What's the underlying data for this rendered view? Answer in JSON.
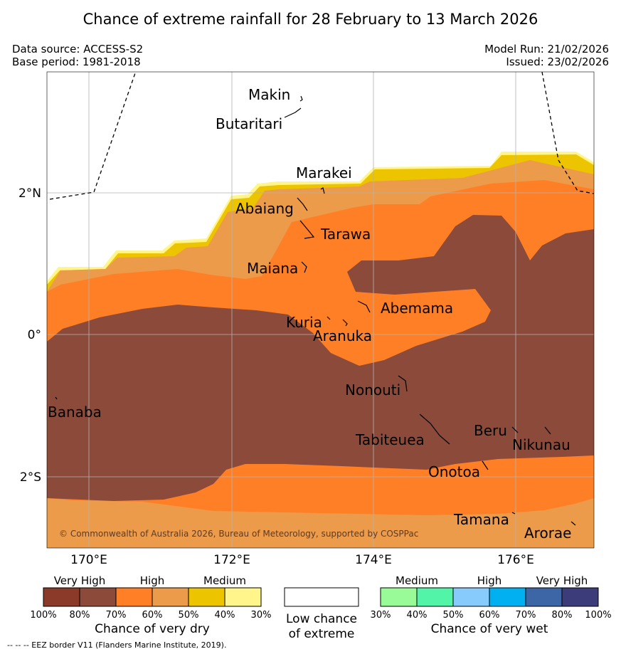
{
  "title": "Chance of extreme rainfall for 28 February to 13 March 2026",
  "meta": {
    "data_source": "Data source: ACCESS-S2",
    "base_period": "Base period: 1981-2018",
    "model_run": "Model Run: 21/02/2026",
    "issued": "Issued: 23/02/2026"
  },
  "axes": {
    "lon_labels": [
      "170°E",
      "172°E",
      "174°E",
      "176°E"
    ],
    "lat_labels": [
      "2°N",
      "0°",
      "2°S"
    ]
  },
  "places": [
    {
      "name": "Makin"
    },
    {
      "name": "Butaritari"
    },
    {
      "name": "Marakei"
    },
    {
      "name": "Abaiang"
    },
    {
      "name": "Tarawa"
    },
    {
      "name": "Maiana"
    },
    {
      "name": "Abemama"
    },
    {
      "name": "Kuria"
    },
    {
      "name": "Aranuka"
    },
    {
      "name": "Nonouti"
    },
    {
      "name": "Banaba"
    },
    {
      "name": "Tabiteuea"
    },
    {
      "name": "Beru"
    },
    {
      "name": "Nikunau"
    },
    {
      "name": "Onotoa"
    },
    {
      "name": "Tamana"
    },
    {
      "name": "Arorae"
    }
  ],
  "copyright": "© Commonwealth of Australia 2026, Bureau of Meteorology, supported by COSPPac",
  "legend": {
    "dry": {
      "headers": [
        "Very High",
        "High",
        "Medium"
      ],
      "colors": [
        "#8b3a2a",
        "#8b4a3a",
        "#ff7f27",
        "#ec9b4a",
        "#ecc400",
        "#fff58a"
      ],
      "ticks": [
        "100%",
        "80%",
        "70%",
        "60%",
        "50%",
        "40%",
        "30%"
      ],
      "caption": "Chance of very dry"
    },
    "neutral": {
      "caption_line1": "Low chance",
      "caption_line2": "of extreme"
    },
    "wet": {
      "headers": [
        "Medium",
        "High",
        "Very High"
      ],
      "colors": [
        "#98fb98",
        "#52f5a8",
        "#86cbfb",
        "#00b0f0",
        "#3c66a6",
        "#3c3c7a"
      ],
      "ticks": [
        "30%",
        "40%",
        "50%",
        "60%",
        "70%",
        "80%",
        "100%"
      ],
      "caption": "Chance of very wet"
    }
  },
  "footnote": "--  --  -- EEZ border V11 (Flanders Marine Institute, 2019).",
  "colors": {
    "very_high_dry": "#8b4a3a",
    "high_dry": "#ff7f27",
    "high_dry_light": "#ec9b4a",
    "medium_dry": "#ecc400",
    "medium_dry_light": "#fff58a"
  }
}
